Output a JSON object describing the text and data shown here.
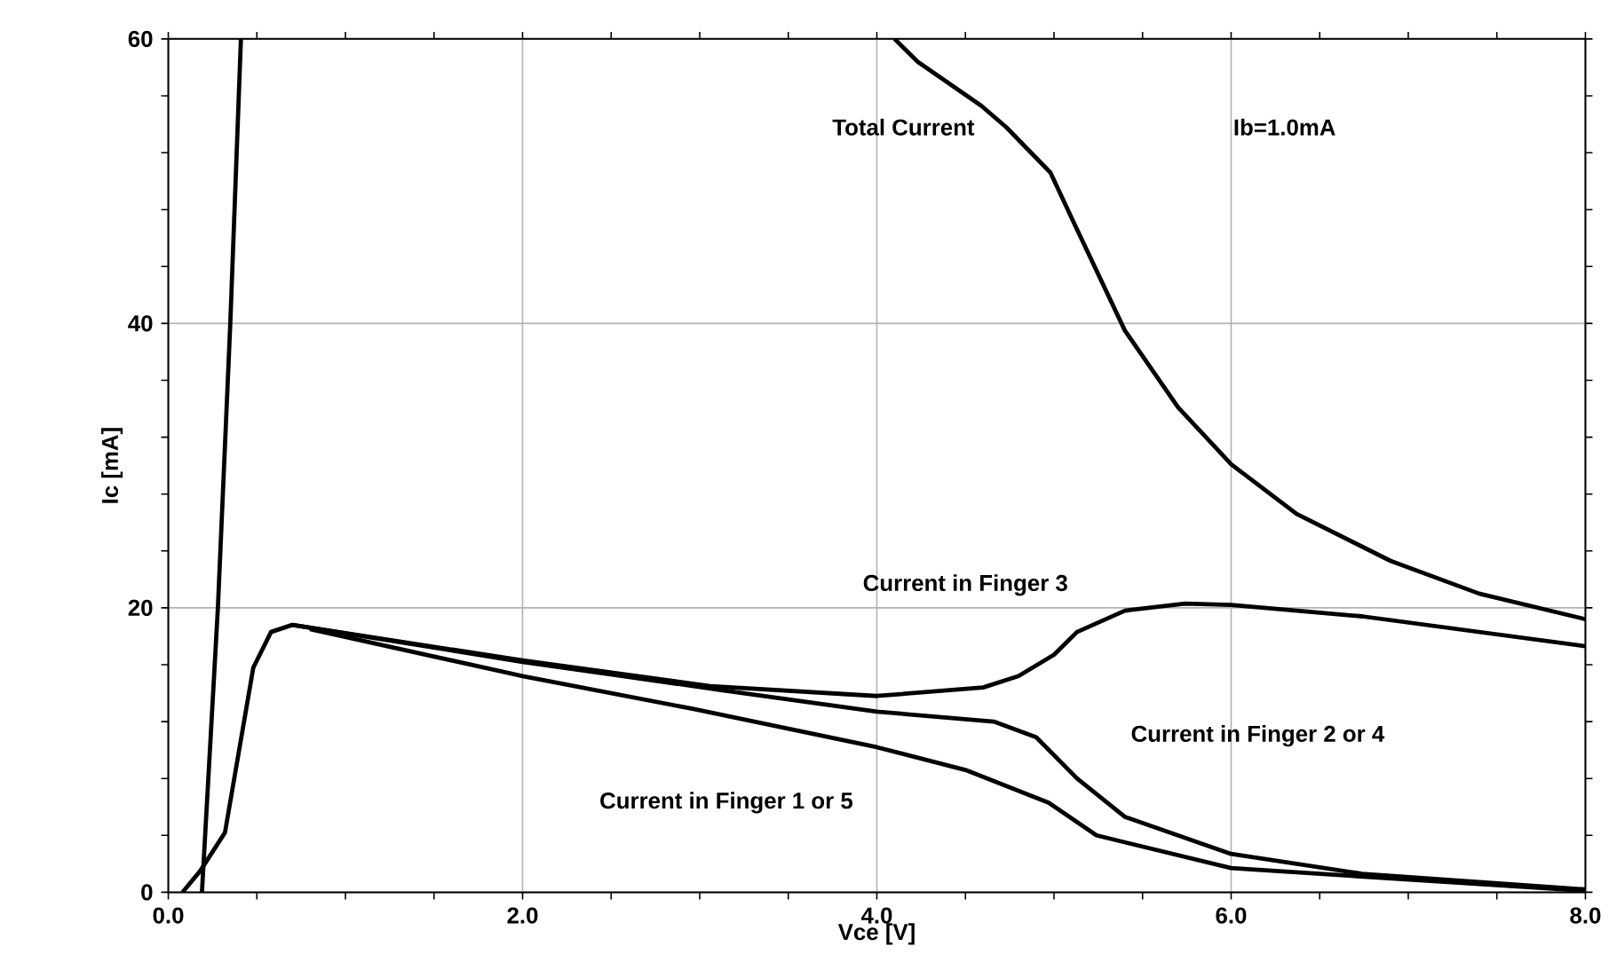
{
  "chart_data": {
    "type": "line",
    "xlabel": "Vce [V]",
    "ylabel": "Ic [mA]",
    "xlim": [
      0,
      8
    ],
    "ylim": [
      0,
      60
    ],
    "xticks": [
      {
        "value": 0,
        "label": "0.0"
      },
      {
        "value": 2,
        "label": "2.0"
      },
      {
        "value": 4,
        "label": "4.0"
      },
      {
        "value": 6,
        "label": "6.0"
      },
      {
        "value": 8,
        "label": "8.0"
      }
    ],
    "yticks": [
      0,
      20,
      40,
      60
    ],
    "grid": true,
    "marker": "none",
    "line_style": "solid",
    "annotations": [
      "Ib=1.0mA"
    ],
    "series": [
      {
        "name": "Total Current",
        "color": "#000000",
        "x": [
          0.19,
          0.28,
          0.35,
          0.41,
          2.0,
          4.1,
          4.23,
          4.59,
          4.73,
          4.98,
          5.13,
          5.4,
          5.7,
          6.0,
          6.37,
          6.9,
          7.4,
          8.0
        ],
        "values": [
          0,
          20,
          40,
          60,
          null,
          60,
          58.4,
          55.3,
          53.8,
          50.6,
          46.6,
          39.5,
          34.1,
          30.1,
          26.6,
          23.3,
          21.0,
          19.2
        ]
      },
      {
        "name": "Current in Finger 3",
        "color": "#000000",
        "x": [
          0.08,
          0.18,
          0.32,
          0.48,
          0.58,
          0.7,
          2.0,
          3.06,
          4.0,
          4.6,
          4.8,
          5.0,
          5.13,
          5.4,
          5.74,
          6.0,
          6.74,
          8.0
        ],
        "values": [
          0,
          1.5,
          4.2,
          15.8,
          18.3,
          18.8,
          16.3,
          14.5,
          13.8,
          14.4,
          15.2,
          16.7,
          18.3,
          19.8,
          20.3,
          20.2,
          19.4,
          17.3
        ]
      },
      {
        "name": "Current in Finger 2 or 4",
        "color": "#000000",
        "x": [
          0.7,
          2.0,
          3.13,
          4.0,
          4.66,
          4.9,
          5.13,
          5.4,
          6.0,
          6.74,
          8.0
        ],
        "values": [
          18.8,
          16.2,
          14.2,
          12.7,
          12.0,
          10.9,
          8.0,
          5.3,
          2.7,
          1.3,
          0.2
        ]
      },
      {
        "name": "Current in Finger 1 or 5",
        "color": "#000000",
        "x": [
          0.8,
          2.0,
          2.96,
          4.0,
          4.5,
          4.97,
          5.24,
          6.0,
          8.0
        ],
        "values": [
          18.5,
          15.2,
          12.9,
          10.2,
          8.6,
          6.3,
          4.0,
          1.7,
          0.1
        ]
      }
    ]
  }
}
